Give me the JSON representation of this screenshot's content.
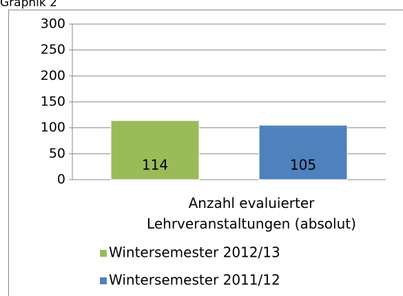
{
  "chart_data": {
    "type": "bar",
    "title": "Graphik 2",
    "categories": [
      "Anzahl evaluierter Lehrveranstaltungen (absolut)"
    ],
    "series": [
      {
        "name": "Wintersemester 2012/13",
        "color": "#9bbb59",
        "values": [
          114
        ]
      },
      {
        "name": "Wintersemester 2011/12",
        "color": "#4f81bd",
        "values": [
          105
        ]
      }
    ],
    "ylim": [
      0,
      300
    ],
    "yticks": [
      0,
      50,
      100,
      150,
      200,
      250,
      300
    ],
    "grid": true,
    "legend": "bottom"
  }
}
